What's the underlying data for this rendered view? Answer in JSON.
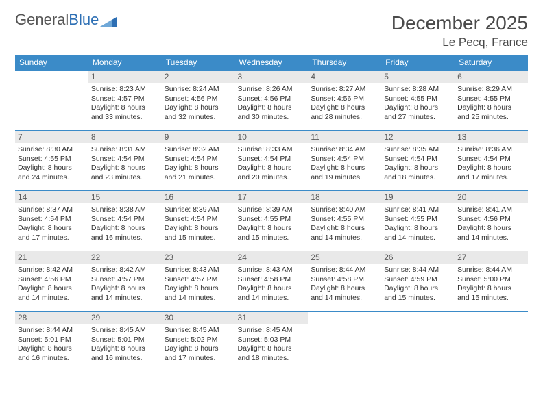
{
  "logo": {
    "text1": "General",
    "text2": "Blue"
  },
  "title": "December 2025",
  "location": "Le Pecq, France",
  "colors": {
    "header_bg": "#3b8bc8",
    "header_text": "#ffffff",
    "daynum_bg": "#e9e9e9",
    "daynum_text": "#5a5a5a",
    "row_border": "#3b8bc8",
    "title_text": "#4a4a4a",
    "logo_gray": "#555555",
    "logo_blue": "#2d6fb4"
  },
  "weekdays": [
    "Sunday",
    "Monday",
    "Tuesday",
    "Wednesday",
    "Thursday",
    "Friday",
    "Saturday"
  ],
  "weeks": [
    [
      {
        "n": "",
        "sr": "",
        "ss": "",
        "dl": ""
      },
      {
        "n": "1",
        "sr": "Sunrise: 8:23 AM",
        "ss": "Sunset: 4:57 PM",
        "dl": "Daylight: 8 hours and 33 minutes."
      },
      {
        "n": "2",
        "sr": "Sunrise: 8:24 AM",
        "ss": "Sunset: 4:56 PM",
        "dl": "Daylight: 8 hours and 32 minutes."
      },
      {
        "n": "3",
        "sr": "Sunrise: 8:26 AM",
        "ss": "Sunset: 4:56 PM",
        "dl": "Daylight: 8 hours and 30 minutes."
      },
      {
        "n": "4",
        "sr": "Sunrise: 8:27 AM",
        "ss": "Sunset: 4:56 PM",
        "dl": "Daylight: 8 hours and 28 minutes."
      },
      {
        "n": "5",
        "sr": "Sunrise: 8:28 AM",
        "ss": "Sunset: 4:55 PM",
        "dl": "Daylight: 8 hours and 27 minutes."
      },
      {
        "n": "6",
        "sr": "Sunrise: 8:29 AM",
        "ss": "Sunset: 4:55 PM",
        "dl": "Daylight: 8 hours and 25 minutes."
      }
    ],
    [
      {
        "n": "7",
        "sr": "Sunrise: 8:30 AM",
        "ss": "Sunset: 4:55 PM",
        "dl": "Daylight: 8 hours and 24 minutes."
      },
      {
        "n": "8",
        "sr": "Sunrise: 8:31 AM",
        "ss": "Sunset: 4:54 PM",
        "dl": "Daylight: 8 hours and 23 minutes."
      },
      {
        "n": "9",
        "sr": "Sunrise: 8:32 AM",
        "ss": "Sunset: 4:54 PM",
        "dl": "Daylight: 8 hours and 21 minutes."
      },
      {
        "n": "10",
        "sr": "Sunrise: 8:33 AM",
        "ss": "Sunset: 4:54 PM",
        "dl": "Daylight: 8 hours and 20 minutes."
      },
      {
        "n": "11",
        "sr": "Sunrise: 8:34 AM",
        "ss": "Sunset: 4:54 PM",
        "dl": "Daylight: 8 hours and 19 minutes."
      },
      {
        "n": "12",
        "sr": "Sunrise: 8:35 AM",
        "ss": "Sunset: 4:54 PM",
        "dl": "Daylight: 8 hours and 18 minutes."
      },
      {
        "n": "13",
        "sr": "Sunrise: 8:36 AM",
        "ss": "Sunset: 4:54 PM",
        "dl": "Daylight: 8 hours and 17 minutes."
      }
    ],
    [
      {
        "n": "14",
        "sr": "Sunrise: 8:37 AM",
        "ss": "Sunset: 4:54 PM",
        "dl": "Daylight: 8 hours and 17 minutes."
      },
      {
        "n": "15",
        "sr": "Sunrise: 8:38 AM",
        "ss": "Sunset: 4:54 PM",
        "dl": "Daylight: 8 hours and 16 minutes."
      },
      {
        "n": "16",
        "sr": "Sunrise: 8:39 AM",
        "ss": "Sunset: 4:54 PM",
        "dl": "Daylight: 8 hours and 15 minutes."
      },
      {
        "n": "17",
        "sr": "Sunrise: 8:39 AM",
        "ss": "Sunset: 4:55 PM",
        "dl": "Daylight: 8 hours and 15 minutes."
      },
      {
        "n": "18",
        "sr": "Sunrise: 8:40 AM",
        "ss": "Sunset: 4:55 PM",
        "dl": "Daylight: 8 hours and 14 minutes."
      },
      {
        "n": "19",
        "sr": "Sunrise: 8:41 AM",
        "ss": "Sunset: 4:55 PM",
        "dl": "Daylight: 8 hours and 14 minutes."
      },
      {
        "n": "20",
        "sr": "Sunrise: 8:41 AM",
        "ss": "Sunset: 4:56 PM",
        "dl": "Daylight: 8 hours and 14 minutes."
      }
    ],
    [
      {
        "n": "21",
        "sr": "Sunrise: 8:42 AM",
        "ss": "Sunset: 4:56 PM",
        "dl": "Daylight: 8 hours and 14 minutes."
      },
      {
        "n": "22",
        "sr": "Sunrise: 8:42 AM",
        "ss": "Sunset: 4:57 PM",
        "dl": "Daylight: 8 hours and 14 minutes."
      },
      {
        "n": "23",
        "sr": "Sunrise: 8:43 AM",
        "ss": "Sunset: 4:57 PM",
        "dl": "Daylight: 8 hours and 14 minutes."
      },
      {
        "n": "24",
        "sr": "Sunrise: 8:43 AM",
        "ss": "Sunset: 4:58 PM",
        "dl": "Daylight: 8 hours and 14 minutes."
      },
      {
        "n": "25",
        "sr": "Sunrise: 8:44 AM",
        "ss": "Sunset: 4:58 PM",
        "dl": "Daylight: 8 hours and 14 minutes."
      },
      {
        "n": "26",
        "sr": "Sunrise: 8:44 AM",
        "ss": "Sunset: 4:59 PM",
        "dl": "Daylight: 8 hours and 15 minutes."
      },
      {
        "n": "27",
        "sr": "Sunrise: 8:44 AM",
        "ss": "Sunset: 5:00 PM",
        "dl": "Daylight: 8 hours and 15 minutes."
      }
    ],
    [
      {
        "n": "28",
        "sr": "Sunrise: 8:44 AM",
        "ss": "Sunset: 5:01 PM",
        "dl": "Daylight: 8 hours and 16 minutes."
      },
      {
        "n": "29",
        "sr": "Sunrise: 8:45 AM",
        "ss": "Sunset: 5:01 PM",
        "dl": "Daylight: 8 hours and 16 minutes."
      },
      {
        "n": "30",
        "sr": "Sunrise: 8:45 AM",
        "ss": "Sunset: 5:02 PM",
        "dl": "Daylight: 8 hours and 17 minutes."
      },
      {
        "n": "31",
        "sr": "Sunrise: 8:45 AM",
        "ss": "Sunset: 5:03 PM",
        "dl": "Daylight: 8 hours and 18 minutes."
      },
      {
        "n": "",
        "sr": "",
        "ss": "",
        "dl": ""
      },
      {
        "n": "",
        "sr": "",
        "ss": "",
        "dl": ""
      },
      {
        "n": "",
        "sr": "",
        "ss": "",
        "dl": ""
      }
    ]
  ]
}
